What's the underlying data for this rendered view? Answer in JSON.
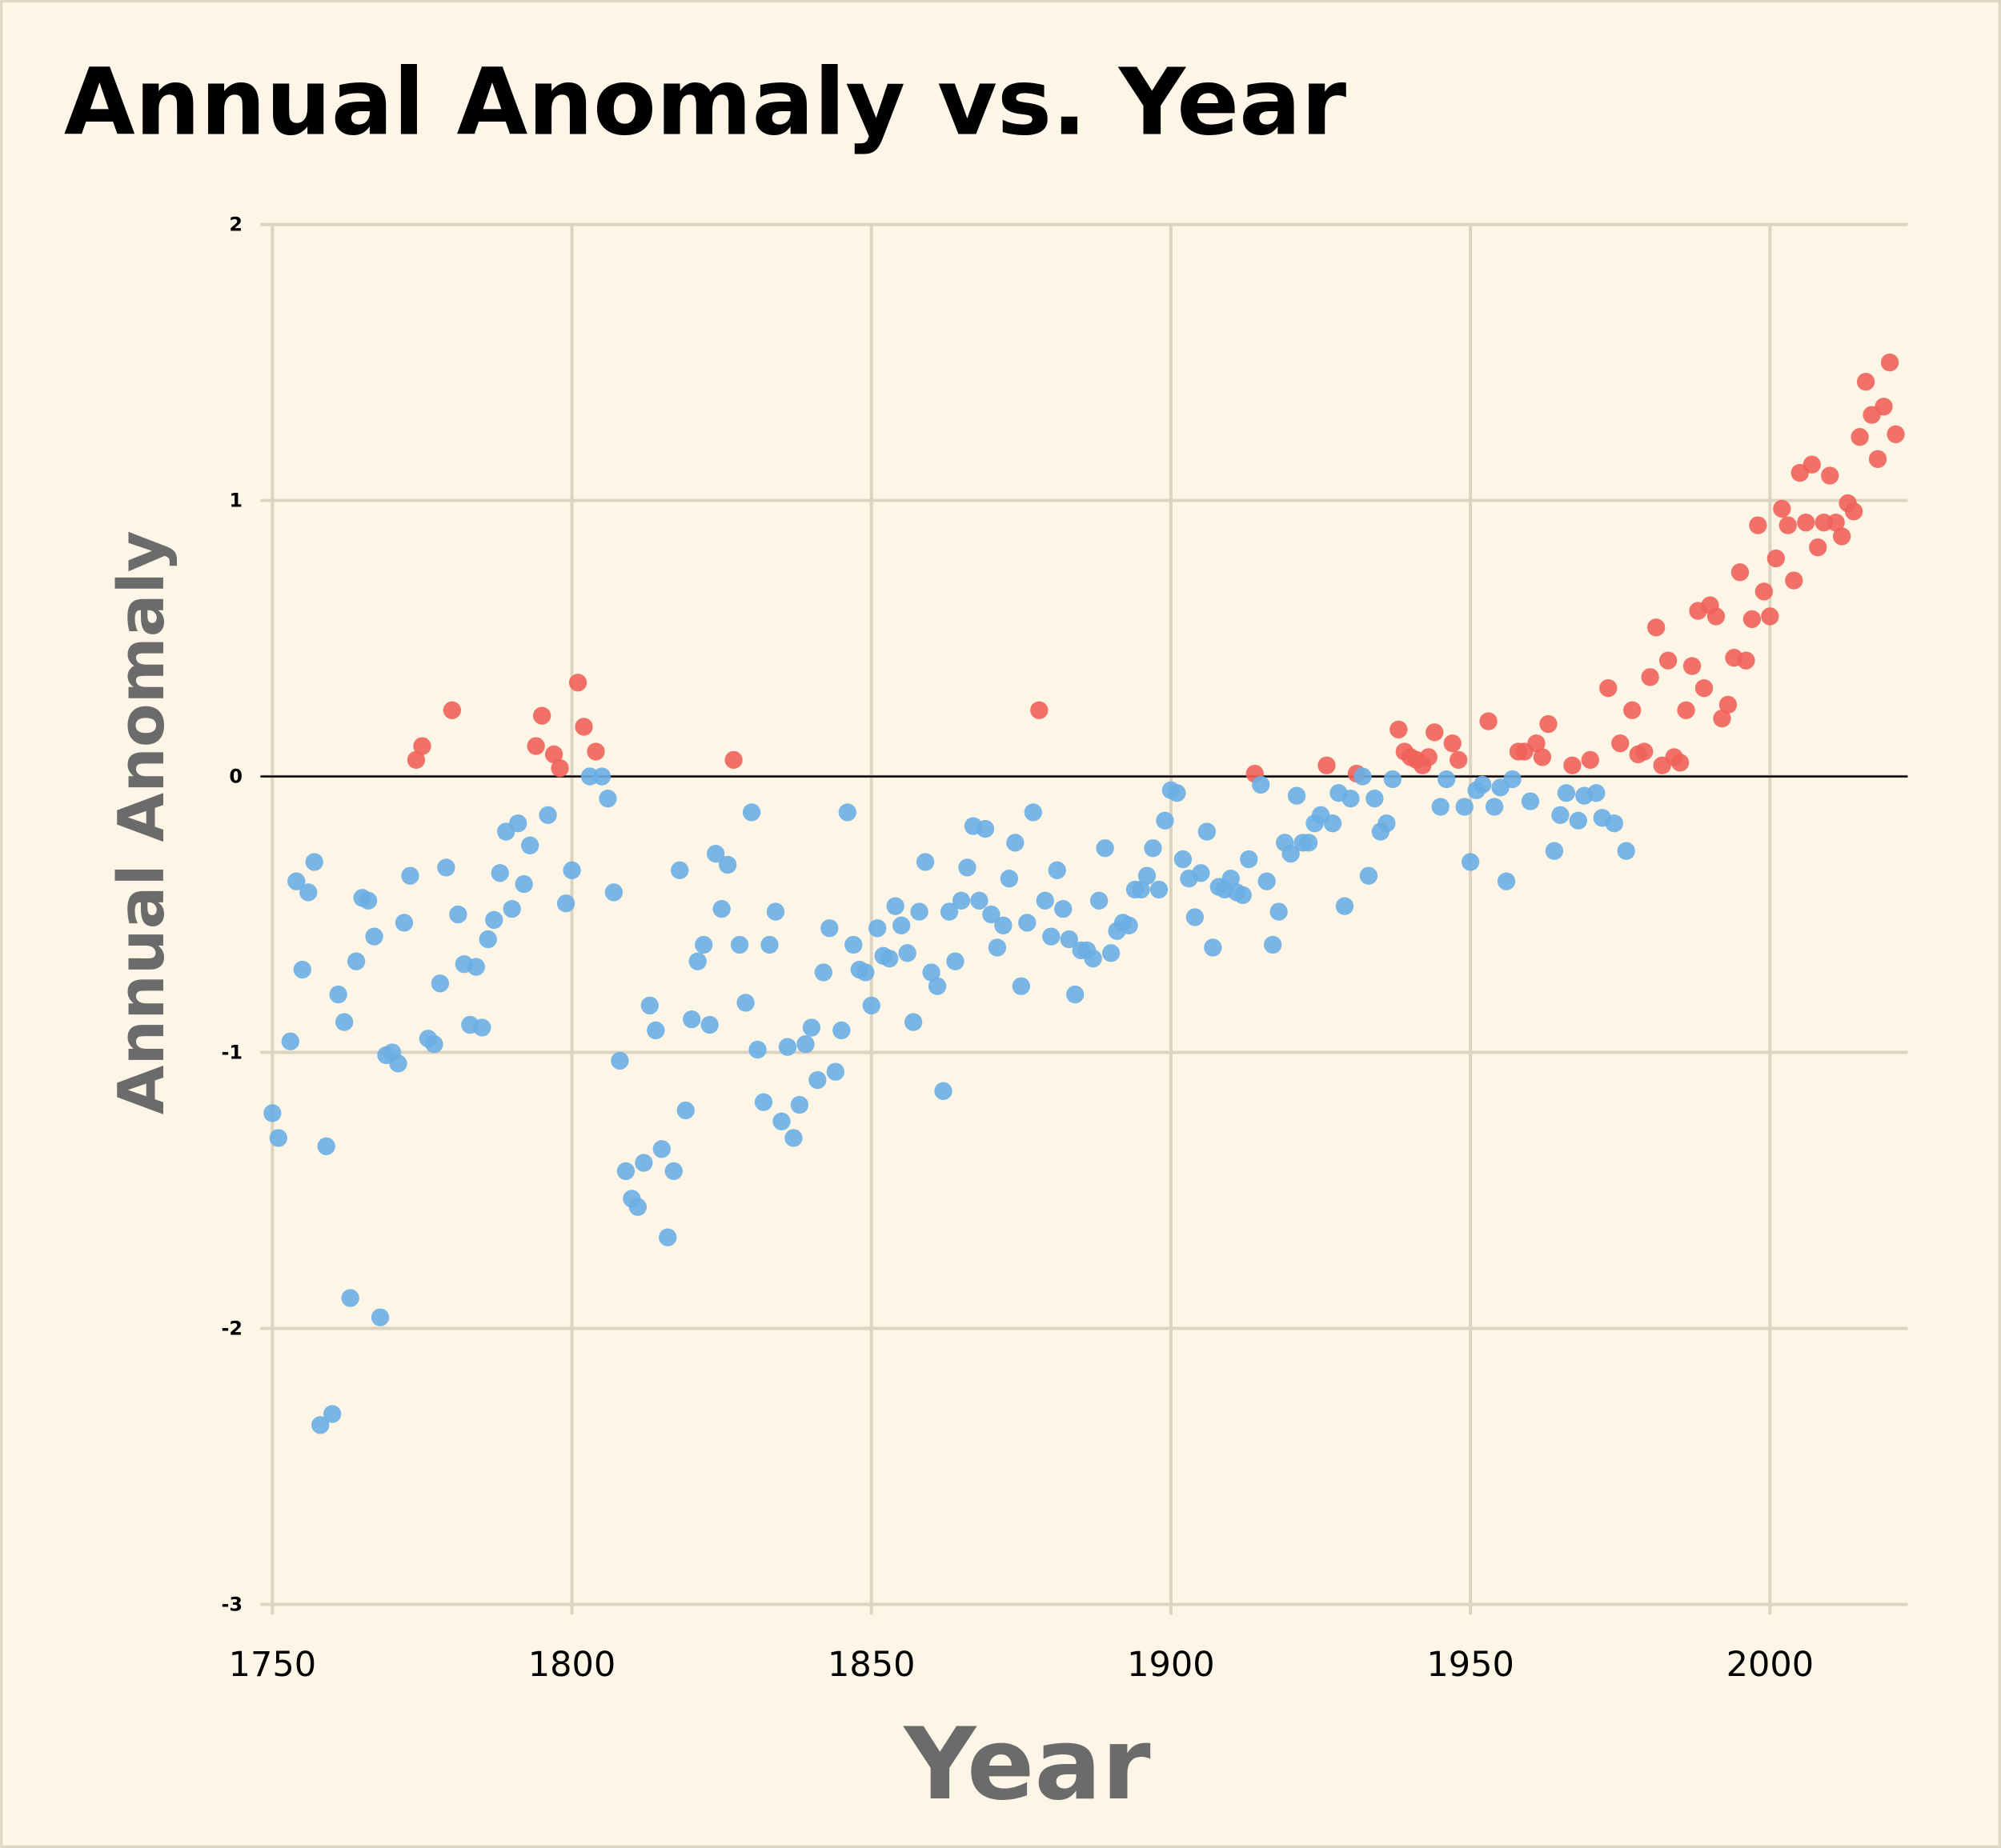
{
  "chart_data": {
    "type": "scatter",
    "title": "Annual Anomaly vs. Year",
    "xlabel": "Year",
    "ylabel": "Annual Anomaly",
    "x": [
      1750,
      1751,
      1753,
      1754,
      1755,
      1756,
      1757,
      1758,
      1759,
      1760,
      1761,
      1762,
      1763,
      1764,
      1765,
      1766,
      1767,
      1768,
      1769,
      1770,
      1771,
      1772,
      1773,
      1774,
      1775,
      1776,
      1777,
      1778,
      1779,
      1780,
      1781,
      1782,
      1783,
      1784,
      1785,
      1786,
      1787,
      1788,
      1789,
      1790,
      1791,
      1792,
      1793,
      1794,
      1795,
      1796,
      1797,
      1798,
      1799,
      1800,
      1801,
      1802,
      1803,
      1804,
      1805,
      1806,
      1807,
      1808,
      1809,
      1810,
      1811,
      1812,
      1813,
      1814,
      1815,
      1816,
      1817,
      1818,
      1819,
      1820,
      1821,
      1822,
      1823,
      1824,
      1825,
      1826,
      1827,
      1828,
      1829,
      1830,
      1831,
      1832,
      1833,
      1834,
      1835,
      1836,
      1837,
      1838,
      1839,
      1840,
      1841,
      1842,
      1843,
      1844,
      1845,
      1846,
      1847,
      1848,
      1849,
      1850,
      1851,
      1852,
      1853,
      1854,
      1855,
      1856,
      1857,
      1858,
      1859,
      1860,
      1861,
      1862,
      1863,
      1864,
      1865,
      1866,
      1867,
      1868,
      1869,
      1870,
      1871,
      1872,
      1873,
      1874,
      1875,
      1876,
      1877,
      1878,
      1879,
      1880,
      1881,
      1882,
      1883,
      1884,
      1885,
      1886,
      1887,
      1888,
      1889,
      1890,
      1891,
      1892,
      1893,
      1894,
      1895,
      1896,
      1897,
      1898,
      1899,
      1900,
      1901,
      1902,
      1903,
      1904,
      1905,
      1906,
      1907,
      1908,
      1909,
      1910,
      1911,
      1912,
      1913,
      1914,
      1915,
      1916,
      1917,
      1918,
      1919,
      1920,
      1921,
      1922,
      1923,
      1924,
      1925,
      1926,
      1927,
      1928,
      1929,
      1930,
      1931,
      1932,
      1933,
      1934,
      1935,
      1936,
      1937,
      1938,
      1939,
      1940,
      1941,
      1942,
      1943,
      1944,
      1945,
      1946,
      1947,
      1948,
      1949,
      1950,
      1951,
      1952,
      1953,
      1954,
      1955,
      1956,
      1957,
      1958,
      1959,
      1960,
      1961,
      1962,
      1963,
      1964,
      1965,
      1966,
      1967,
      1968,
      1969,
      1970,
      1971,
      1972,
      1973,
      1974,
      1975,
      1976,
      1977,
      1978,
      1979,
      1980,
      1981,
      1982,
      1983,
      1984,
      1985,
      1986,
      1987,
      1988,
      1989,
      1990,
      1991,
      1992,
      1993,
      1994,
      1995,
      1996,
      1997,
      1998,
      1999,
      2000,
      2001,
      2002,
      2003,
      2004,
      2005,
      2006,
      2007,
      2008,
      2009,
      2010,
      2011,
      2012,
      2013,
      2014,
      2015,
      2016,
      2017,
      2018,
      2019,
      2020,
      2021
    ],
    "values": [
      -1.22,
      -1.31,
      -0.96,
      -0.38,
      -0.7,
      -0.42,
      -0.31,
      -2.35,
      -1.34,
      -2.31,
      -0.79,
      -0.89,
      -1.89,
      -0.67,
      -0.44,
      -0.45,
      -0.58,
      -1.96,
      -1.01,
      -1.0,
      -1.04,
      -0.53,
      -0.36,
      0.06,
      0.11,
      -0.95,
      -0.97,
      -0.75,
      -0.33,
      0.24,
      -0.5,
      -0.68,
      -0.9,
      -0.69,
      -0.91,
      -0.59,
      -0.52,
      -0.35,
      -0.2,
      -0.48,
      -0.17,
      -0.39,
      -0.25,
      0.11,
      0.22,
      -0.14,
      0.08,
      0.03,
      -0.46,
      -0.34,
      0.34,
      0.18,
      0,
      0.09,
      0,
      -0.08,
      -0.42,
      -1.03,
      -1.43,
      -1.53,
      -1.56,
      -1.4,
      -0.83,
      -0.92,
      -1.35,
      -1.67,
      -1.43,
      -0.34,
      -1.21,
      -0.88,
      -0.67,
      -0.61,
      -0.9,
      -0.28,
      -0.48,
      -0.32,
      0.06,
      -0.61,
      -0.82,
      -0.13,
      -0.99,
      -1.18,
      -0.61,
      -0.49,
      -1.25,
      -0.98,
      -1.31,
      -1.19,
      -0.97,
      -0.91,
      -1.1,
      -0.71,
      -0.55,
      -1.07,
      -0.92,
      -0.13,
      -0.61,
      -0.7,
      -0.71,
      -0.83,
      -0.55,
      -0.65,
      -0.66,
      -0.47,
      -0.54,
      -0.64,
      -0.89,
      -0.49,
      -0.31,
      -0.71,
      -0.76,
      -1.14,
      -0.49,
      -0.67,
      -0.45,
      -0.33,
      -0.18,
      -0.45,
      -0.19,
      -0.5,
      -0.62,
      -0.54,
      -0.37,
      -0.24,
      -0.76,
      -0.53,
      -0.13,
      0.24,
      -0.45,
      -0.58,
      -0.34,
      -0.48,
      -0.59,
      -0.79,
      -0.63,
      -0.63,
      -0.66,
      -0.45,
      -0.26,
      -0.64,
      -0.56,
      -0.53,
      -0.54,
      -0.41,
      -0.41,
      -0.36,
      -0.26,
      -0.41,
      -0.16,
      -0.05,
      -0.06,
      -0.3,
      -0.37,
      -0.51,
      -0.35,
      -0.2,
      -0.62,
      -0.4,
      -0.41,
      -0.37,
      -0.42,
      -0.43,
      -0.3,
      0.01,
      -0.03,
      -0.38,
      -0.61,
      -0.49,
      -0.24,
      -0.28,
      -0.07,
      -0.24,
      -0.24,
      -0.17,
      -0.14,
      0.04,
      -0.17,
      -0.06,
      -0.47,
      -0.08,
      0.01,
      0,
      -0.36,
      -0.08,
      -0.2,
      -0.17,
      -0.01,
      0.17,
      0.09,
      0.07,
      0.06,
      0.04,
      0.07,
      0.16,
      -0.11,
      -0.01,
      0.12,
      0.06,
      -0.11,
      -0.31,
      -0.05,
      -0.03,
      0.2,
      -0.11,
      -0.04,
      -0.38,
      -0.01,
      0.09,
      0.09,
      -0.09,
      0.12,
      0.07,
      0.19,
      -0.27,
      -0.14,
      -0.06,
      0.04,
      -0.16,
      -0.07,
      0.06,
      -0.06,
      -0.15,
      0.32,
      -0.17,
      0.12,
      -0.27,
      0.24,
      0.08,
      0.09,
      0.36,
      0.54,
      0.04,
      0.42,
      0.07,
      0.05,
      0.24,
      0.4,
      0.6,
      0.32,
      0.62,
      0.58,
      0.21,
      0.26,
      0.43,
      0.74,
      0.42,
      0.57,
      0.91,
      0.67,
      0.58,
      0.79,
      0.97,
      0.91,
      0.71,
      1.1,
      0.92,
      1.13,
      0.83,
      0.92,
      1.09,
      0.92,
      0.87,
      0.99,
      0.96,
      1.23,
      1.43,
      1.31,
      1.15,
      1.34,
      1.5,
      1.24
    ],
    "colors": {
      "above": "#f0625a",
      "below": "#6aaee4"
    },
    "zero_line": true,
    "grid": true,
    "xlim": [
      1748,
      2023
    ],
    "xticks": [
      1750,
      1800,
      1850,
      1900,
      1950,
      2000
    ],
    "ylim": [
      -3,
      2
    ],
    "yticks": [
      -3,
      -2,
      -1,
      0,
      1,
      2
    ]
  }
}
